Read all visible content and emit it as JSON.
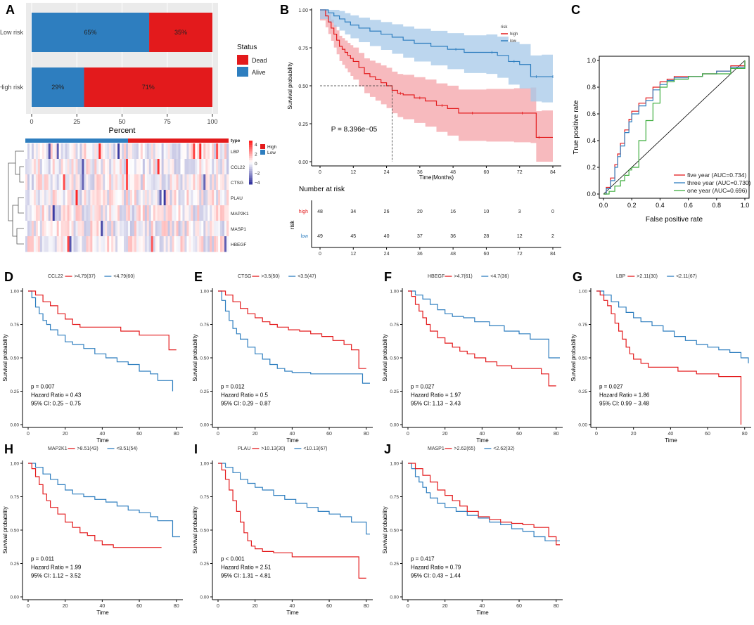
{
  "colors": {
    "red": "#e31a1c",
    "blue": "#2e7ebf",
    "red_fill": "#f4a3a8",
    "blue_fill": "#a6c8e8",
    "green": "#3fae3f",
    "grey_bg": "#ebebeb"
  },
  "panelA": {
    "letter": "A",
    "chart_data": {
      "type": "bar",
      "orientation": "horizontal",
      "stacked": true,
      "categories": [
        "Low risk",
        "High risk"
      ],
      "series": [
        {
          "name": "Alive",
          "values": [
            65,
            29
          ]
        },
        {
          "name": "Dead",
          "values": [
            35,
            71
          ]
        }
      ],
      "labels": {
        "Low risk": [
          "65%",
          "35%"
        ],
        "High risk": [
          "29%",
          "71%"
        ]
      },
      "xlabel": "Percent",
      "xticks": [
        "0",
        "25",
        "50",
        "75",
        "100"
      ],
      "xlim": [
        0,
        100
      ],
      "legend_title": "Status",
      "legend": [
        "Dead",
        "Alive"
      ]
    }
  },
  "heatmap": {
    "chart_data": {
      "type": "heatmap",
      "rows": [
        "LBP",
        "CCL22",
        "CTSG",
        "PLAU",
        "MAP2K1",
        "MASP1",
        "HBEGF"
      ],
      "annotation_title": "type",
      "annotation_legend": [
        "High",
        "Low"
      ],
      "scale_ticks": [
        "4",
        "2",
        "0",
        "−2",
        "−4"
      ],
      "scale_range": [
        -4,
        4
      ]
    }
  },
  "panelB": {
    "letter": "B",
    "chart_data": {
      "type": "line",
      "title": "",
      "xlabel": "Time(Months)",
      "ylabel": "Survival probability",
      "xticks": [
        "0",
        "12",
        "24",
        "36",
        "48",
        "60",
        "72",
        "84"
      ],
      "yticks": [
        "0.00",
        "0.25",
        "0.50",
        "0.75",
        "1.00"
      ],
      "xlim": [
        0,
        84
      ],
      "ylim": [
        0,
        1
      ],
      "pvalue": "P = 8.396e−05",
      "legend_title": "risk",
      "legend": [
        "high",
        "low"
      ],
      "series": [
        {
          "name": "high",
          "x": [
            0,
            2,
            3,
            4,
            5,
            6,
            7,
            8,
            9,
            10,
            11,
            12,
            14,
            16,
            18,
            20,
            22,
            24,
            26,
            28,
            30,
            34,
            38,
            42,
            46,
            50,
            60,
            70,
            76,
            78,
            80
          ],
          "y": [
            1,
            0.96,
            0.92,
            0.88,
            0.84,
            0.8,
            0.76,
            0.74,
            0.72,
            0.7,
            0.68,
            0.66,
            0.62,
            0.58,
            0.56,
            0.54,
            0.52,
            0.5,
            0.47,
            0.45,
            0.44,
            0.42,
            0.4,
            0.37,
            0.35,
            0.32,
            0.32,
            0.32,
            0.32,
            0.16,
            0.16
          ]
        },
        {
          "name": "low",
          "x": [
            0,
            3,
            5,
            7,
            9,
            11,
            14,
            18,
            22,
            26,
            30,
            34,
            40,
            46,
            52,
            60,
            64,
            68,
            72,
            76,
            80,
            84
          ],
          "y": [
            1,
            0.98,
            0.96,
            0.94,
            0.92,
            0.9,
            0.88,
            0.86,
            0.84,
            0.82,
            0.8,
            0.78,
            0.76,
            0.74,
            0.72,
            0.72,
            0.7,
            0.66,
            0.64,
            0.56,
            0.56,
            0.56
          ]
        }
      ],
      "median_line": {
        "x": 26,
        "y": 0.5
      },
      "risk_table": {
        "title": "Number at risk",
        "ylabel": "risk",
        "rows": [
          {
            "name": "high",
            "values": [
              "48",
              "34",
              "26",
              "20",
              "16",
              "10",
              "3",
              "0"
            ]
          },
          {
            "name": "low",
            "values": [
              "49",
              "45",
              "40",
              "37",
              "36",
              "28",
              "12",
              "2"
            ]
          }
        ],
        "xticks": [
          "0",
          "12",
          "24",
          "36",
          "48",
          "60",
          "72",
          "84"
        ]
      }
    }
  },
  "panelC": {
    "letter": "C",
    "chart_data": {
      "type": "line",
      "xlabel": "False positive rate",
      "ylabel": "True positive rate",
      "xticks": [
        "0.0",
        "0.2",
        "0.4",
        "0.6",
        "0.8",
        "1.0"
      ],
      "yticks": [
        "0.0",
        "0.2",
        "0.4",
        "0.6",
        "0.8",
        "1.0"
      ],
      "xlim": [
        0,
        1
      ],
      "ylim": [
        0,
        1
      ],
      "series": [
        {
          "name": "five year (AUC=0.734)",
          "x": [
            0,
            0.02,
            0.05,
            0.08,
            0.1,
            0.12,
            0.15,
            0.18,
            0.2,
            0.25,
            0.3,
            0.35,
            0.4,
            0.45,
            0.5,
            0.6,
            0.7,
            0.8,
            0.9,
            1.0
          ],
          "y": [
            0,
            0.05,
            0.12,
            0.22,
            0.3,
            0.38,
            0.48,
            0.56,
            0.62,
            0.68,
            0.72,
            0.8,
            0.84,
            0.86,
            0.88,
            0.88,
            0.9,
            0.92,
            0.96,
            1.0
          ]
        },
        {
          "name": "three year (AUC=0.730)",
          "x": [
            0,
            0.02,
            0.05,
            0.08,
            0.1,
            0.12,
            0.15,
            0.18,
            0.2,
            0.25,
            0.3,
            0.35,
            0.4,
            0.45,
            0.5,
            0.6,
            0.7,
            0.8,
            0.9,
            1.0
          ],
          "y": [
            0,
            0.04,
            0.1,
            0.2,
            0.28,
            0.36,
            0.46,
            0.54,
            0.6,
            0.66,
            0.7,
            0.78,
            0.82,
            0.85,
            0.87,
            0.88,
            0.9,
            0.92,
            0.95,
            1.0
          ]
        },
        {
          "name": "one year (AUC=0.696)",
          "x": [
            0,
            0.04,
            0.08,
            0.12,
            0.15,
            0.18,
            0.2,
            0.25,
            0.3,
            0.35,
            0.4,
            0.45,
            0.5,
            0.6,
            0.7,
            0.8,
            0.9,
            1.0
          ],
          "y": [
            0,
            0.02,
            0.06,
            0.1,
            0.14,
            0.18,
            0.2,
            0.4,
            0.55,
            0.68,
            0.8,
            0.84,
            0.86,
            0.88,
            0.9,
            0.9,
            0.94,
            1.0
          ]
        }
      ]
    }
  },
  "km_panels": [
    {
      "letter": "D",
      "gene": "CCL22",
      "legend": [
        ">4.79(37)",
        "<4.79(60)"
      ],
      "p": "p = 0.007",
      "hr": "Hazard Ratio = 0.43",
      "ci": "95% CI: 0.25 − 0.75",
      "red": {
        "x": [
          0,
          4,
          8,
          12,
          16,
          20,
          24,
          28,
          32,
          40,
          50,
          60,
          70,
          76,
          80
        ],
        "y": [
          1,
          0.97,
          0.92,
          0.89,
          0.83,
          0.79,
          0.75,
          0.73,
          0.73,
          0.73,
          0.7,
          0.67,
          0.67,
          0.56,
          0.56
        ]
      },
      "blue": {
        "x": [
          0,
          2,
          4,
          6,
          8,
          10,
          12,
          16,
          20,
          24,
          30,
          36,
          42,
          48,
          54,
          60,
          66,
          70,
          74,
          78
        ],
        "y": [
          1,
          0.95,
          0.88,
          0.83,
          0.78,
          0.75,
          0.71,
          0.67,
          0.62,
          0.6,
          0.57,
          0.53,
          0.5,
          0.47,
          0.45,
          0.4,
          0.38,
          0.33,
          0.33,
          0.25
        ]
      }
    },
    {
      "letter": "E",
      "gene": "CTSG",
      "legend": [
        ">3.5(50)",
        "<3.5(47)"
      ],
      "p": "p = 0.012",
      "hr": "Hazard Ratio = 0.5",
      "ci": "95% CI: 0.29 − 0.87",
      "red": {
        "x": [
          0,
          4,
          8,
          12,
          16,
          20,
          24,
          28,
          32,
          38,
          44,
          50,
          56,
          62,
          68,
          72,
          76,
          80
        ],
        "y": [
          1,
          0.97,
          0.92,
          0.87,
          0.83,
          0.8,
          0.77,
          0.75,
          0.73,
          0.71,
          0.7,
          0.68,
          0.66,
          0.63,
          0.6,
          0.56,
          0.42,
          0.42
        ]
      },
      "blue": {
        "x": [
          0,
          2,
          4,
          6,
          8,
          10,
          12,
          16,
          20,
          24,
          28,
          32,
          36,
          40,
          50,
          60,
          70,
          78,
          82
        ],
        "y": [
          1,
          0.93,
          0.85,
          0.78,
          0.72,
          0.68,
          0.64,
          0.58,
          0.53,
          0.49,
          0.45,
          0.42,
          0.4,
          0.39,
          0.38,
          0.38,
          0.38,
          0.31,
          0.31
        ]
      }
    },
    {
      "letter": "F",
      "gene": "HBEGF",
      "legend": [
        ">4.7(61)",
        "<4.7(36)"
      ],
      "p": "p = 0.027",
      "hr": "Hazard Ratio = 1.97",
      "ci": "95% CI: 1.13 − 3.43",
      "red": {
        "x": [
          0,
          2,
          4,
          6,
          8,
          10,
          12,
          16,
          20,
          24,
          28,
          32,
          36,
          42,
          48,
          56,
          64,
          72,
          76,
          80
        ],
        "y": [
          1,
          0.96,
          0.9,
          0.85,
          0.8,
          0.75,
          0.7,
          0.65,
          0.61,
          0.58,
          0.55,
          0.53,
          0.5,
          0.47,
          0.44,
          0.42,
          0.42,
          0.38,
          0.29,
          0.29
        ]
      },
      "blue": {
        "x": [
          0,
          4,
          8,
          12,
          16,
          20,
          24,
          30,
          36,
          44,
          52,
          60,
          66,
          72,
          76,
          82
        ],
        "y": [
          1,
          0.97,
          0.94,
          0.9,
          0.86,
          0.83,
          0.81,
          0.8,
          0.77,
          0.74,
          0.7,
          0.68,
          0.64,
          0.64,
          0.5,
          0.5
        ]
      }
    },
    {
      "letter": "G",
      "gene": "LBP",
      "legend": [
        ">2.11(30)",
        "<2.11(67)"
      ],
      "p": "p = 0.027",
      "hr": "Hazard Ratio = 1.86",
      "ci": "95% CI: 0.99 − 3.48",
      "red": {
        "x": [
          0,
          2,
          4,
          6,
          8,
          10,
          12,
          14,
          16,
          18,
          20,
          24,
          28,
          36,
          44,
          54,
          66,
          76,
          78
        ],
        "y": [
          1,
          0.97,
          0.93,
          0.89,
          0.83,
          0.76,
          0.7,
          0.64,
          0.58,
          0.53,
          0.49,
          0.46,
          0.43,
          0.43,
          0.4,
          0.38,
          0.36,
          0.36,
          0
        ]
      },
      "blue": {
        "x": [
          0,
          4,
          8,
          12,
          16,
          20,
          24,
          30,
          36,
          42,
          48,
          54,
          60,
          66,
          72,
          78,
          82
        ],
        "y": [
          1,
          0.97,
          0.92,
          0.88,
          0.84,
          0.8,
          0.77,
          0.74,
          0.7,
          0.66,
          0.63,
          0.6,
          0.58,
          0.56,
          0.54,
          0.5,
          0.46
        ]
      }
    },
    {
      "letter": "H",
      "gene": "MAP2K1",
      "legend": [
        ">8.51(43)",
        "<8.51(54)"
      ],
      "p": "p = 0.011",
      "hr": "Hazard Ratio = 1.99",
      "ci": "95% CI: 1.12 − 3.52",
      "red": {
        "x": [
          0,
          2,
          4,
          6,
          8,
          10,
          12,
          16,
          20,
          24,
          28,
          32,
          36,
          40,
          46,
          54,
          66,
          72
        ],
        "y": [
          1,
          0.96,
          0.9,
          0.84,
          0.77,
          0.72,
          0.67,
          0.62,
          0.56,
          0.52,
          0.48,
          0.46,
          0.42,
          0.39,
          0.37,
          0.37,
          0.37,
          0.37
        ]
      },
      "blue": {
        "x": [
          0,
          4,
          8,
          12,
          16,
          20,
          24,
          30,
          36,
          42,
          48,
          54,
          60,
          66,
          70,
          74,
          78,
          82
        ],
        "y": [
          1,
          0.97,
          0.92,
          0.88,
          0.84,
          0.8,
          0.77,
          0.75,
          0.73,
          0.71,
          0.68,
          0.65,
          0.63,
          0.6,
          0.57,
          0.57,
          0.45,
          0.45
        ]
      }
    },
    {
      "letter": "I",
      "gene": "PLAU",
      "legend": [
        ">10.13(30)",
        "<10.13(67)"
      ],
      "p": "p < 0.001",
      "hr": "Hazard Ratio = 2.51",
      "ci": "95% CI: 1.31 − 4.81",
      "red": {
        "x": [
          0,
          2,
          4,
          6,
          8,
          10,
          12,
          14,
          16,
          18,
          20,
          24,
          30,
          40,
          50,
          60,
          70,
          76,
          80
        ],
        "y": [
          1,
          0.95,
          0.88,
          0.8,
          0.72,
          0.64,
          0.56,
          0.48,
          0.42,
          0.38,
          0.36,
          0.34,
          0.33,
          0.3,
          0.3,
          0.3,
          0.3,
          0.14,
          0.14
        ]
      },
      "blue": {
        "x": [
          0,
          4,
          8,
          12,
          16,
          20,
          24,
          30,
          36,
          42,
          48,
          54,
          60,
          66,
          72,
          76,
          80,
          82
        ],
        "y": [
          1,
          0.97,
          0.93,
          0.88,
          0.85,
          0.82,
          0.8,
          0.76,
          0.73,
          0.7,
          0.67,
          0.64,
          0.62,
          0.6,
          0.56,
          0.56,
          0.47,
          0.47
        ]
      }
    },
    {
      "letter": "J",
      "gene": "MASP1",
      "legend": [
        ">2.62(65)",
        "<2.62(32)"
      ],
      "p": "p = 0.417",
      "hr": "Hazard Ratio = 0.79",
      "ci": "95% CI: 0.43 − 1.44",
      "red": {
        "x": [
          0,
          4,
          8,
          12,
          16,
          20,
          24,
          28,
          32,
          38,
          44,
          50,
          56,
          62,
          68,
          72,
          76,
          80,
          82
        ],
        "y": [
          1,
          0.96,
          0.91,
          0.86,
          0.8,
          0.76,
          0.72,
          0.68,
          0.64,
          0.6,
          0.58,
          0.56,
          0.55,
          0.54,
          0.52,
          0.52,
          0.45,
          0.39,
          0.39
        ]
      },
      "blue": {
        "x": [
          0,
          2,
          4,
          6,
          8,
          10,
          12,
          16,
          20,
          26,
          32,
          38,
          44,
          50,
          56,
          62,
          68,
          74,
          78,
          82
        ],
        "y": [
          1,
          0.96,
          0.9,
          0.86,
          0.82,
          0.78,
          0.74,
          0.7,
          0.67,
          0.64,
          0.61,
          0.59,
          0.56,
          0.54,
          0.51,
          0.49,
          0.45,
          0.42,
          0.42,
          0.42
        ]
      }
    }
  ],
  "km_common": {
    "xlabel": "Time",
    "ylabel": "Survival probability",
    "xticks": [
      "0",
      "20",
      "40",
      "60",
      "80"
    ],
    "yticks": [
      "0.00",
      "0.25",
      "0.50",
      "0.75",
      "1.00"
    ]
  }
}
